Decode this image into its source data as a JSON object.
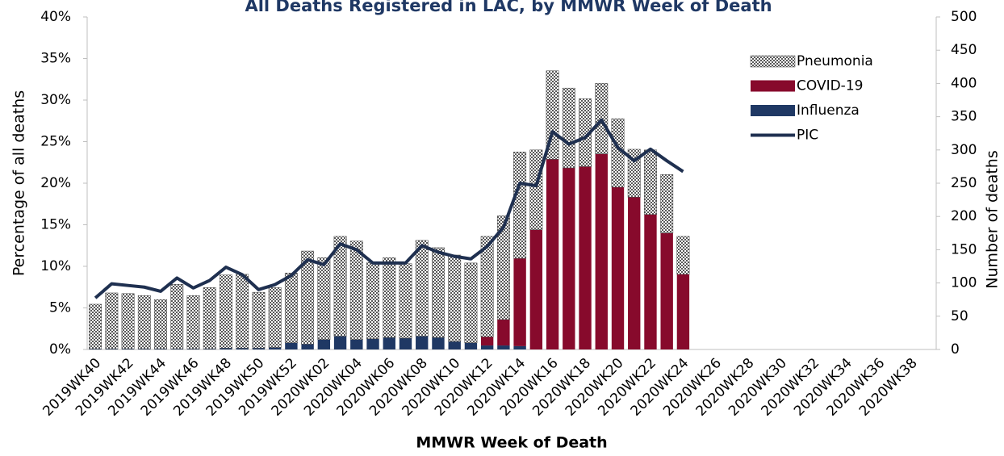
{
  "chart_data": {
    "type": "bar",
    "title": "All Deaths Registered in LAC, by MMWR Week of Death",
    "xlabel": "MMWR Week of Death",
    "ylabel": "Percentage of all deaths",
    "y2label": "Number of deaths",
    "categories": [
      "2019WK40",
      null,
      "2019WK42",
      null,
      "2019WK44",
      null,
      "2019WK46",
      null,
      "2019WK48",
      null,
      "2019WK50",
      null,
      "2019WK52",
      null,
      "2020WK02",
      null,
      "2020WK04",
      null,
      "2020WK06",
      null,
      "2020WK08",
      null,
      "2020WK10",
      null,
      "2020WK12",
      null,
      "2020WK14",
      null,
      "2020WK16",
      null,
      "2020WK18",
      null,
      "2020WK20",
      null,
      "2020WK22",
      null,
      "2020WK24",
      null,
      "2020WK26",
      null,
      "2020WK28",
      null,
      "2020WK30",
      null,
      "2020WK32",
      null,
      "2020WK34",
      null,
      "2020WK36",
      null,
      "2020WK38",
      null
    ],
    "series": [
      {
        "name": "Pneumonia",
        "color": "#595959",
        "axis": "y2",
        "values": [
          67,
          84,
          83,
          80,
          74,
          97,
          80,
          92,
          110,
          111,
          84,
          90,
          105,
          140,
          123,
          150,
          148,
          115,
          120,
          112,
          144,
          135,
          130,
          120,
          151,
          156,
          160,
          120,
          133,
          120,
          102,
          106,
          103,
          72,
          97,
          88,
          57,
          null,
          null,
          null,
          null,
          null,
          null,
          null,
          null,
          null,
          null,
          null,
          null,
          null,
          null,
          null
        ]
      },
      {
        "name": "COVID-19",
        "color": "#870a2c",
        "axis": "y2",
        "values": [
          0,
          0,
          0,
          0,
          0,
          0,
          0,
          0,
          0,
          0,
          0,
          0,
          0,
          0,
          0,
          0,
          0,
          0,
          0,
          0,
          0,
          0,
          0,
          0,
          13,
          39,
          132,
          180,
          286,
          273,
          275,
          294,
          244,
          229,
          203,
          175,
          113,
          null,
          null,
          null,
          null,
          null,
          null,
          null,
          null,
          null,
          null,
          null,
          null,
          null,
          null,
          null
        ]
      },
      {
        "name": "Influenza",
        "color": "#1f3864",
        "axis": "y2",
        "values": [
          1,
          1,
          1,
          1,
          1,
          1,
          1,
          1,
          2,
          2,
          2,
          3,
          10,
          8,
          15,
          20,
          15,
          16,
          18,
          17,
          20,
          18,
          12,
          10,
          6,
          6,
          5,
          0,
          0,
          0,
          0,
          0,
          0,
          0,
          0,
          0,
          0,
          null,
          null,
          null,
          null,
          null,
          null,
          null,
          null,
          null,
          null,
          null,
          null,
          null,
          null,
          null
        ]
      },
      {
        "name": "PIC",
        "color": "#1f3050",
        "axis": "y",
        "line": true,
        "values": [
          6.2,
          7.9,
          7.7,
          7.5,
          7.0,
          8.6,
          7.4,
          8.3,
          9.9,
          9.0,
          7.2,
          7.8,
          8.9,
          10.8,
          10.2,
          12.7,
          12.0,
          10.4,
          10.4,
          10.4,
          12.5,
          11.7,
          11.2,
          10.9,
          12.4,
          14.7,
          20.0,
          19.7,
          26.2,
          24.7,
          25.5,
          27.6,
          24.3,
          22.7,
          24.1,
          22.7,
          21.4,
          null,
          null,
          null,
          null,
          null,
          null,
          null,
          null,
          null,
          null,
          null,
          null,
          null,
          null,
          null
        ]
      }
    ],
    "ylim": [
      0,
      40
    ],
    "yticks": [
      {
        "value": 0,
        "label": "0%"
      },
      {
        "value": 5,
        "label": "5%"
      },
      {
        "value": 10,
        "label": "10%"
      },
      {
        "value": 15,
        "label": "15%"
      },
      {
        "value": 20,
        "label": "20%"
      },
      {
        "value": 25,
        "label": "25%"
      },
      {
        "value": 30,
        "label": "30%"
      },
      {
        "value": 35,
        "label": "35%"
      },
      {
        "value": 40,
        "label": "40%"
      }
    ],
    "y2lim": [
      0,
      500
    ],
    "y2ticks": [
      0,
      50,
      100,
      150,
      200,
      250,
      300,
      350,
      400,
      450,
      500
    ],
    "grid": false
  }
}
